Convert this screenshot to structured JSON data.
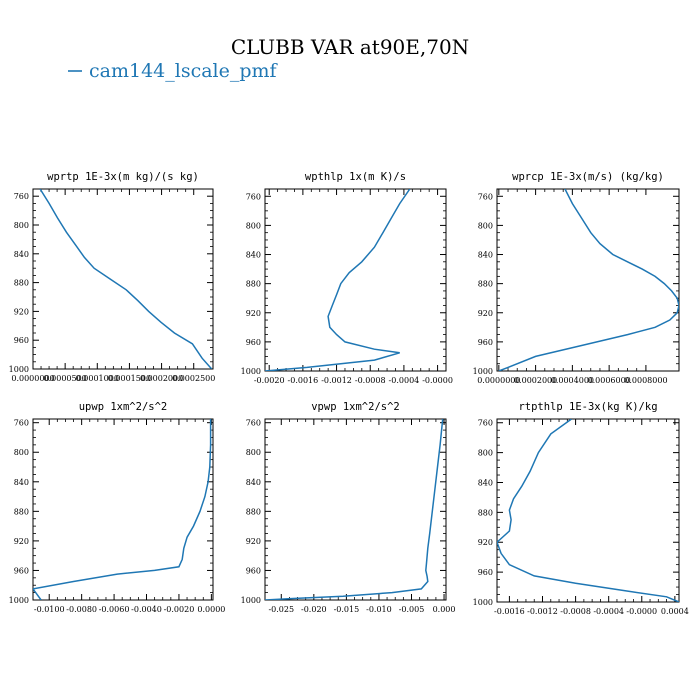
{
  "figure": {
    "title": "CLUBB VAR at90E,70N",
    "legend": [
      {
        "label": "cam144_lscale_pmf",
        "color": "#1f77b4"
      }
    ]
  },
  "chart_data": [
    {
      "type": "line",
      "title": "wprtp  1E-3x(m kg)/(s kg)",
      "xlim": [
        0,
        0.00028
      ],
      "ylim": [
        1000,
        750
      ],
      "xticks": [
        0,
        5e-05,
        0.0001,
        0.00015,
        0.0002,
        0.00025
      ],
      "xtick_labels": [
        "0.0000000",
        "0.0000500",
        "0.0001000",
        "0.0001500",
        "0.0002000",
        "0.0002500"
      ],
      "yticks": [
        760,
        800,
        840,
        880,
        920,
        960,
        1000
      ],
      "series": [
        {
          "color": "#1f77b4",
          "x": [
            1.1e-05,
            2.5e-05,
            3.8e-05,
            5.2e-05,
            6.8e-05,
            8e-05,
            9.5e-05,
            0.00012,
            0.000145,
            0.000163,
            0.00018,
            0.000199,
            0.00022,
            0.000248,
            0.000263,
            0.000278
          ],
          "y": [
            750,
            770,
            790,
            810,
            830,
            845,
            860,
            875,
            890,
            905,
            920,
            935,
            950,
            965,
            985,
            1000
          ]
        }
      ]
    },
    {
      "type": "line",
      "title": "wpthlp  1x(m K)/s",
      "xlim": [
        -0.00205,
        0.0001
      ],
      "ylim": [
        1000,
        750
      ],
      "xticks": [
        -0.002,
        -0.0016,
        -0.0012,
        -0.0008,
        -0.0004,
        0
      ],
      "xtick_labels": [
        "-0.0020",
        "-0.0016",
        "-0.0012",
        "-0.0008",
        "-0.0004",
        "-0.0000"
      ],
      "yticks": [
        760,
        800,
        840,
        880,
        920,
        960,
        1000
      ],
      "series": [
        {
          "color": "#1f77b4",
          "x": [
            -0.00033,
            -0.00045,
            -0.00055,
            -0.00065,
            -0.00075,
            -0.0009,
            -0.00105,
            -0.00115,
            -0.0012,
            -0.00125,
            -0.0013,
            -0.00128,
            -0.0012,
            -0.0011,
            -0.00075,
            -0.00045,
            -0.00075,
            -0.00155,
            -0.00205
          ],
          "y": [
            750,
            770,
            790,
            810,
            830,
            850,
            865,
            880,
            895,
            910,
            925,
            940,
            950,
            960,
            970,
            975,
            985,
            995,
            1000
          ]
        }
      ]
    },
    {
      "type": "line",
      "title": "wprcp  1E-3x(m/s) (kg/kg)",
      "xlim": [
        -1e-05,
        0.00098
      ],
      "ylim": [
        1000,
        750
      ],
      "xticks": [
        0,
        0.0002,
        0.0004,
        0.0006,
        0.0008
      ],
      "xtick_labels": [
        "0.0000000",
        "0.0002000",
        "0.0004000",
        "0.0006000",
        "0.0008000"
      ],
      "yticks": [
        760,
        800,
        840,
        880,
        920,
        960,
        1000
      ],
      "series": [
        {
          "color": "#1f77b4",
          "x": [
            0.00036,
            0.0004,
            0.00045,
            0.0005,
            0.00055,
            0.00062,
            0.0007,
            0.00078,
            0.00085,
            0.0009,
            0.00094,
            0.00097,
            0.00098,
            0.00097,
            0.00093,
            0.00085,
            0.0007,
            0.00045,
            0.0002,
            5e-05,
            0
          ],
          "y": [
            750,
            770,
            790,
            810,
            825,
            840,
            850,
            860,
            870,
            880,
            890,
            900,
            910,
            920,
            930,
            940,
            950,
            965,
            980,
            995,
            1000
          ]
        }
      ]
    },
    {
      "type": "line",
      "title": "upwp  1xm^2/s^2",
      "xlim": [
        -0.011,
        0.0001
      ],
      "ylim": [
        1000,
        755
      ],
      "xticks": [
        -0.01,
        -0.008,
        -0.006,
        -0.004,
        -0.002,
        0
      ],
      "xtick_labels": [
        "-0.0100",
        "-0.0080",
        "-0.0060",
        "-0.0040",
        "-0.0020",
        "0.0000"
      ],
      "yticks": [
        760,
        800,
        840,
        880,
        920,
        960,
        1000
      ],
      "series": [
        {
          "color": "#1f77b4",
          "x": [
            -5e-05,
            -5e-05,
            -0.0001,
            -0.0002,
            -0.0004,
            -0.0007,
            -0.0011,
            -0.0015,
            -0.0017,
            -0.0018,
            -0.002,
            -0.0035,
            -0.0058,
            -0.0085,
            -0.011,
            -0.0105
          ],
          "y": [
            755,
            790,
            820,
            840,
            860,
            880,
            900,
            915,
            930,
            945,
            955,
            960,
            965,
            975,
            985,
            1000
          ]
        }
      ]
    },
    {
      "type": "line",
      "title": "vpwp  1xm^2/s^2",
      "xlim": [
        -0.0275,
        0.0003
      ],
      "ylim": [
        1000,
        755
      ],
      "xticks": [
        -0.025,
        -0.02,
        -0.015,
        -0.01,
        -0.005,
        0
      ],
      "xtick_labels": [
        "-0.025",
        "-0.020",
        "-0.015",
        "-0.010",
        "-0.005",
        "0.000"
      ],
      "yticks": [
        760,
        800,
        840,
        880,
        920,
        960,
        1000
      ],
      "series": [
        {
          "color": "#1f77b4",
          "x": [
            -0.0002,
            -0.0006,
            -0.001,
            -0.0014,
            -0.0018,
            -0.0022,
            -0.0025,
            -0.0027,
            -0.0028,
            -0.0026,
            -0.0025,
            -0.0035,
            -0.008,
            -0.0155,
            -0.0232,
            -0.0275
          ],
          "y": [
            755,
            790,
            820,
            850,
            880,
            910,
            930,
            950,
            960,
            968,
            975,
            985,
            990,
            995,
            998,
            1000
          ]
        }
      ]
    },
    {
      "type": "line",
      "title": "rtpthlp  1E-3x(kg K)/kg",
      "xlim": [
        -0.00175,
        0.00045
      ],
      "ylim": [
        1000,
        755
      ],
      "xticks": [
        -0.0016,
        -0.0012,
        -0.0008,
        -0.0004,
        0,
        0.0004
      ],
      "xtick_labels": [
        "-0.0016",
        "-0.0012",
        "-0.0008",
        "-0.0004",
        "-0.0000",
        "0.0004"
      ],
      "yticks": [
        760,
        800,
        840,
        880,
        920,
        960,
        1000
      ],
      "series": [
        {
          "color": "#1f77b4",
          "x": [
            -0.00085,
            -0.0011,
            -0.00125,
            -0.00135,
            -0.00145,
            -0.00155,
            -0.0016,
            -0.00158,
            -0.0016,
            -0.00175,
            -0.0017,
            -0.0016,
            -0.0013,
            -0.0008,
            -0.0002,
            0.0003,
            0.00045
          ],
          "y": [
            755,
            775,
            800,
            825,
            845,
            862,
            877,
            890,
            905,
            920,
            935,
            950,
            965,
            975,
            985,
            993,
            1000
          ]
        }
      ]
    }
  ]
}
